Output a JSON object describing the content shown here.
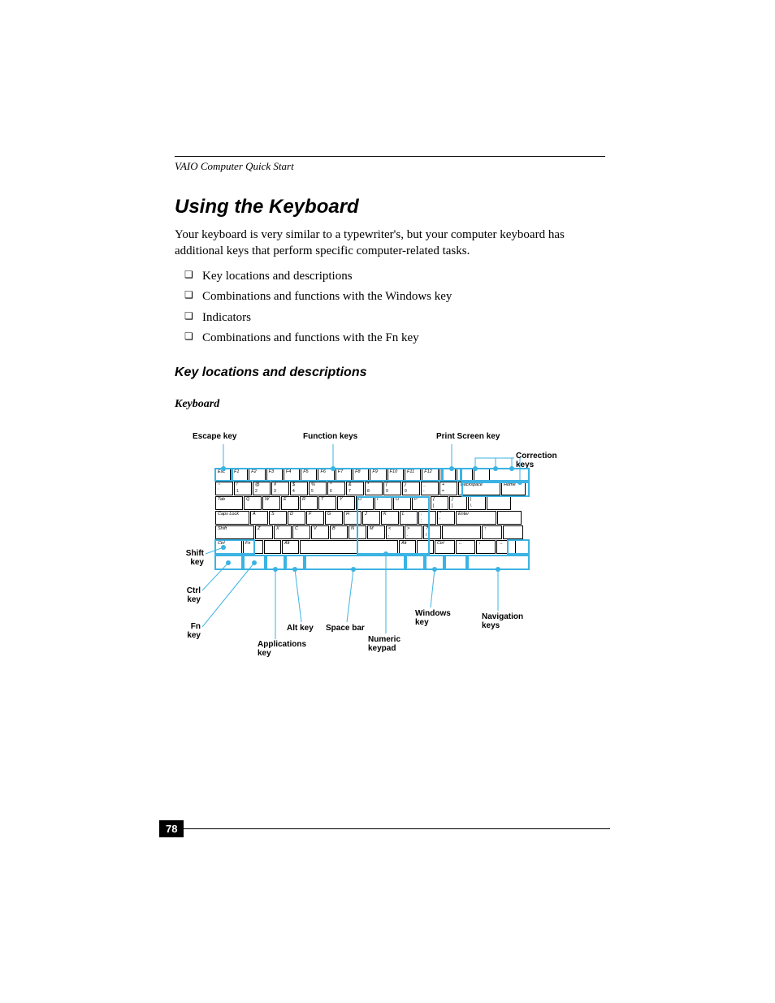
{
  "running_head": "VAIO Computer Quick Start",
  "title": "Using the Keyboard",
  "intro": "Your keyboard is very similar to a typewriter's, but your computer keyboard has additional keys that perform specific computer-related tasks.",
  "bullets": [
    "Key locations and descriptions",
    "Combinations and functions with the Windows key",
    "Indicators",
    "Combinations and functions with the Fn key"
  ],
  "section_heading": "Key locations and descriptions",
  "diagram_caption": "Keyboard",
  "page_number": "78",
  "diagram": {
    "accent_color": "#3bb3e3",
    "callouts": {
      "escape": "Escape key",
      "function": "Function keys",
      "printscreen": "Print Screen key",
      "correction": "Correction keys",
      "shift": "Shift key",
      "ctrl": "Ctrl key",
      "fn": "Fn key",
      "applications": "Applications key",
      "alt": "Alt key",
      "spacebar": "Space bar",
      "numeric": "Numeric keypad",
      "windows": "Windows key",
      "navigation": "Navigation keys"
    },
    "rows": {
      "r1": [
        "Esc",
        "F1",
        "F2",
        "F3",
        "F4",
        "F5",
        "F6",
        "F7",
        "F8",
        "F9",
        "F10",
        "F11",
        "F12",
        "",
        "",
        ""
      ],
      "r2_top": [
        "~",
        "!",
        "@",
        "#",
        "$",
        "%",
        "^",
        "&",
        "*",
        "(",
        ")",
        "_",
        "+"
      ],
      "r2_bot": [
        "`",
        "1",
        "2",
        "3",
        "4",
        "5",
        "6",
        "7",
        "8",
        "9",
        "0",
        "-",
        "="
      ],
      "r2_back": "Backspace",
      "r2_home": "Home",
      "r3_tab": "Tab",
      "r3": [
        "Q",
        "W",
        "E",
        "R",
        "T",
        "Y",
        "U",
        "I",
        "O",
        "P",
        "{",
        "}"
      ],
      "r3_sub": [
        "",
        "",
        "",
        "",
        "",
        "",
        "",
        "",
        "",
        "",
        "[",
        "]"
      ],
      "r3_bslash": "|",
      "r3_bslash_sub": "\\",
      "r4_caps": "Caps Lock",
      "r4": [
        "A",
        "S",
        "D",
        "F",
        "G",
        "H",
        "J",
        "K",
        "L",
        ":",
        "\""
      ],
      "r4_sub": [
        "",
        "",
        "",
        "",
        "",
        "",
        "",
        "",
        "",
        ";",
        "'"
      ],
      "r4_enter": "Enter",
      "r5_shift": "Shift",
      "r5": [
        "Z",
        "X",
        "C",
        "V",
        "B",
        "N",
        "M",
        "<",
        ">",
        "?"
      ],
      "r5_sub": [
        "",
        "",
        "",
        "",
        "",
        "",
        "",
        ",",
        ".",
        "/"
      ],
      "r5_up": "↑",
      "r6": [
        "Ctrl",
        "Fn",
        "",
        "Alt",
        "",
        "Alt",
        "",
        "Ctrl",
        "←",
        "↓",
        "→"
      ]
    }
  }
}
